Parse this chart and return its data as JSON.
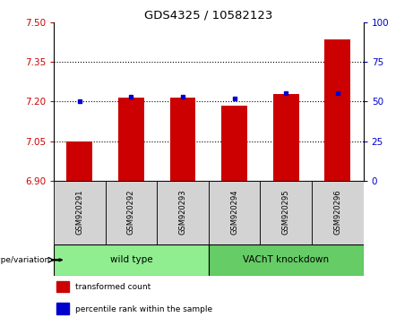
{
  "title": "GDS4325 / 10582123",
  "categories": [
    "GSM920291",
    "GSM920292",
    "GSM920293",
    "GSM920294",
    "GSM920295",
    "GSM920296"
  ],
  "red_values": [
    7.048,
    7.215,
    7.215,
    7.185,
    7.228,
    7.435
  ],
  "blue_values": [
    50,
    53,
    53,
    52,
    55,
    55
  ],
  "ylim_left": [
    6.9,
    7.5
  ],
  "ylim_right": [
    0,
    100
  ],
  "yticks_left": [
    6.9,
    7.05,
    7.2,
    7.35,
    7.5
  ],
  "yticks_right": [
    0,
    25,
    50,
    75,
    100
  ],
  "grid_values": [
    7.05,
    7.2,
    7.35
  ],
  "groups": [
    {
      "label": "wild type",
      "indices": [
        0,
        1,
        2
      ],
      "color": "#90EE90"
    },
    {
      "label": "VAChT knockdown",
      "indices": [
        3,
        4,
        5
      ],
      "color": "#66CC66"
    }
  ],
  "group_label": "genotype/variation",
  "legend_items": [
    {
      "label": "transformed count",
      "color": "#CC0000"
    },
    {
      "label": "percentile rank within the sample",
      "color": "#0000CC"
    }
  ],
  "bar_color": "#CC0000",
  "dot_color": "#0000CC",
  "left_axis_color": "#CC0000",
  "right_axis_color": "#0000CC",
  "bg_plot": "#FFFFFF",
  "bg_xticklabels": "#D3D3D3",
  "bar_width": 0.5,
  "base_value": 6.9
}
